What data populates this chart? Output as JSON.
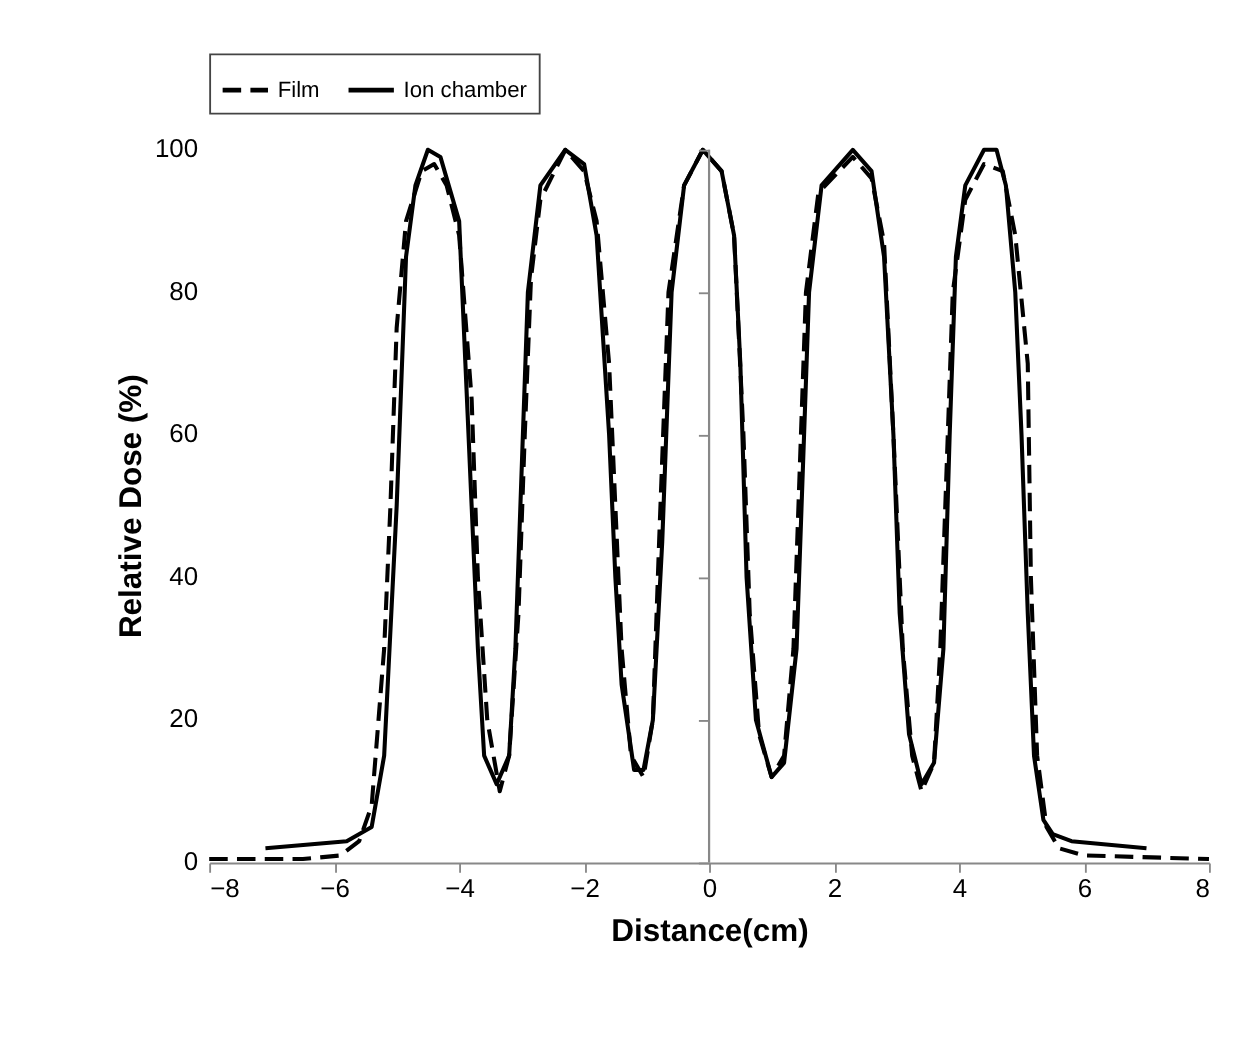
{
  "chart_data": {
    "type": "line",
    "xlabel": "Distance(cm)",
    "ylabel": "Relative Dose (%)",
    "xlim": [
      -8,
      8
    ],
    "xticks": [
      -8,
      -6,
      -4,
      -2,
      0,
      2,
      4,
      6,
      8
    ],
    "ylim": [
      0,
      100
    ],
    "yticks": [
      0,
      20,
      40,
      60,
      80,
      100
    ],
    "grid": false,
    "legend": "top",
    "marker": "none",
    "ref_lines": [
      {
        "axis": "x",
        "value": 0,
        "color": "#888888",
        "line_style": "solid"
      }
    ],
    "series": [
      {
        "name": "Film",
        "color": "#000000",
        "line_style": "dashed",
        "x": [
          -8,
          -6.5,
          -5.9,
          -5.6,
          -5.4,
          -5.2,
          -5.1,
          -5.0,
          -4.85,
          -4.6,
          -4.4,
          -4.2,
          -4.0,
          -3.8,
          -3.7,
          -3.55,
          -3.35,
          -3.2,
          -3.05,
          -2.95,
          -2.85,
          -2.7,
          -2.3,
          -2.0,
          -1.8,
          -1.6,
          -1.5,
          -1.4,
          -1.25,
          -1.05,
          -0.9,
          -0.8,
          -0.65,
          -0.4,
          -0.1,
          0.2,
          0.4,
          0.55,
          0.65,
          0.8,
          1.0,
          1.2,
          1.35,
          1.45,
          1.55,
          1.75,
          2.3,
          2.6,
          2.8,
          2.95,
          3.1,
          3.25,
          3.4,
          3.6,
          3.7,
          3.8,
          3.9,
          4.1,
          4.4,
          4.7,
          4.9,
          5.1,
          5.15,
          5.25,
          5.4,
          5.6,
          6.0,
          8.0
        ],
        "values": [
          0.5,
          0.5,
          1,
          3,
          8,
          30,
          50,
          75,
          90,
          97,
          98,
          95,
          88,
          65,
          40,
          20,
          10,
          15,
          35,
          60,
          82,
          93,
          100,
          97,
          90,
          70,
          50,
          30,
          15,
          12,
          20,
          45,
          80,
          95,
          100,
          97,
          88,
          60,
          35,
          18,
          12,
          15,
          30,
          55,
          80,
          94,
          99,
          96,
          87,
          60,
          30,
          15,
          10,
          14,
          30,
          55,
          80,
          93,
          98,
          97,
          88,
          70,
          40,
          15,
          5,
          2,
          1,
          0.5
        ]
      },
      {
        "name": "Ion chamber",
        "color": "#000000",
        "line_style": "solid",
        "x": [
          -7.1,
          -5.8,
          -5.4,
          -5.2,
          -5.0,
          -4.85,
          -4.7,
          -4.5,
          -4.3,
          -4.0,
          -3.9,
          -3.8,
          -3.7,
          -3.6,
          -3.4,
          -3.2,
          -3.1,
          -3.0,
          -2.9,
          -2.7,
          -2.3,
          -2.0,
          -1.8,
          -1.6,
          -1.5,
          -1.4,
          -1.2,
          -1.05,
          -0.9,
          -0.75,
          -0.6,
          -0.4,
          -0.1,
          0.2,
          0.4,
          0.5,
          0.6,
          0.75,
          1.0,
          1.2,
          1.4,
          1.5,
          1.6,
          1.8,
          2.3,
          2.6,
          2.8,
          2.95,
          3.05,
          3.2,
          3.4,
          3.6,
          3.75,
          3.85,
          3.95,
          4.1,
          4.4,
          4.6,
          4.75,
          4.9,
          5.0,
          5.1,
          5.2,
          5.35,
          5.5,
          5.8,
          7.0
        ],
        "values": [
          2,
          3,
          5,
          15,
          50,
          85,
          95,
          100,
          99,
          90,
          70,
          50,
          30,
          15,
          11,
          15,
          30,
          55,
          80,
          95,
          100,
          98,
          88,
          60,
          40,
          25,
          13,
          13,
          20,
          45,
          80,
          95,
          100,
          97,
          88,
          70,
          40,
          20,
          12,
          14,
          30,
          55,
          80,
          95,
          100,
          97,
          85,
          60,
          35,
          18,
          11,
          14,
          30,
          60,
          85,
          95,
          100,
          100,
          95,
          80,
          60,
          35,
          15,
          6,
          4,
          3,
          2
        ]
      }
    ]
  }
}
